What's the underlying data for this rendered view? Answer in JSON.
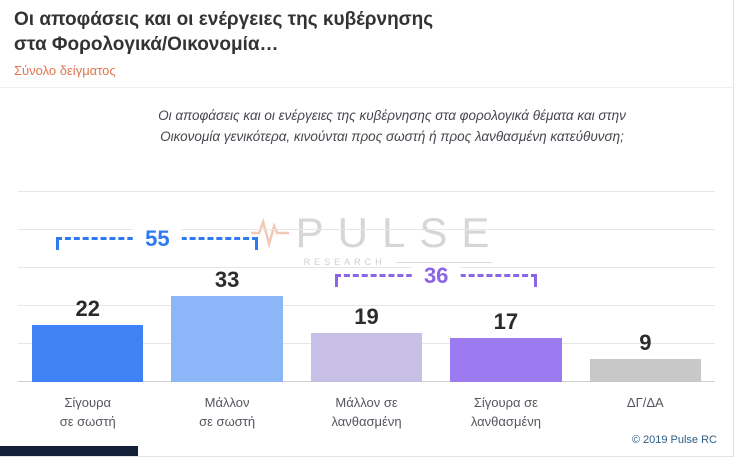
{
  "header": {
    "title_line1": "Οι αποφάσεις και οι ενέργειες της κυβέρνησης",
    "title_line2": "στα Φορολογικά/Οικονομία…",
    "subtitle": "Σύνολο δείγματος"
  },
  "question": "Οι αποφάσεις και οι ενέργειες της κυβέρνησης στα φορολογικά θέματα και στην Οικονομία γενικότερα, κινούνται προς σωστή ή προς λανθασμένη κατεύθυνση;",
  "watermark": {
    "brand": "PULSE",
    "sub": "RESEARCH"
  },
  "chart_data": {
    "type": "bar",
    "categories": [
      "Σίγουρα\nσε σωστή",
      "Μάλλον\nσε σωστή",
      "Μάλλον σε\nλανθασμένη",
      "Σίγουρα σε\nλανθασμένη",
      "ΔΓ/ΔΑ"
    ],
    "values": [
      22,
      33,
      19,
      17,
      9
    ],
    "bar_colors": [
      "#3e82f5",
      "#8cb6f7",
      "#c8bfe7",
      "#9b7bef",
      "#c8c8c8"
    ],
    "groups": [
      {
        "label": "55",
        "from": 0,
        "to": 1,
        "color": "#2e7af2"
      },
      {
        "label": "36",
        "from": 2,
        "to": 3,
        "color": "#8a65e6"
      }
    ],
    "ylim": [
      0,
      40
    ],
    "grid": true,
    "legend": "none",
    "title": "Οι αποφάσεις και οι ενέργειες της κυβέρνησης στα Φορολογικά/Οικονομία…",
    "xlabel": "",
    "ylabel": ""
  },
  "footer": {
    "copyright": "© 2019 Pulse RC"
  }
}
